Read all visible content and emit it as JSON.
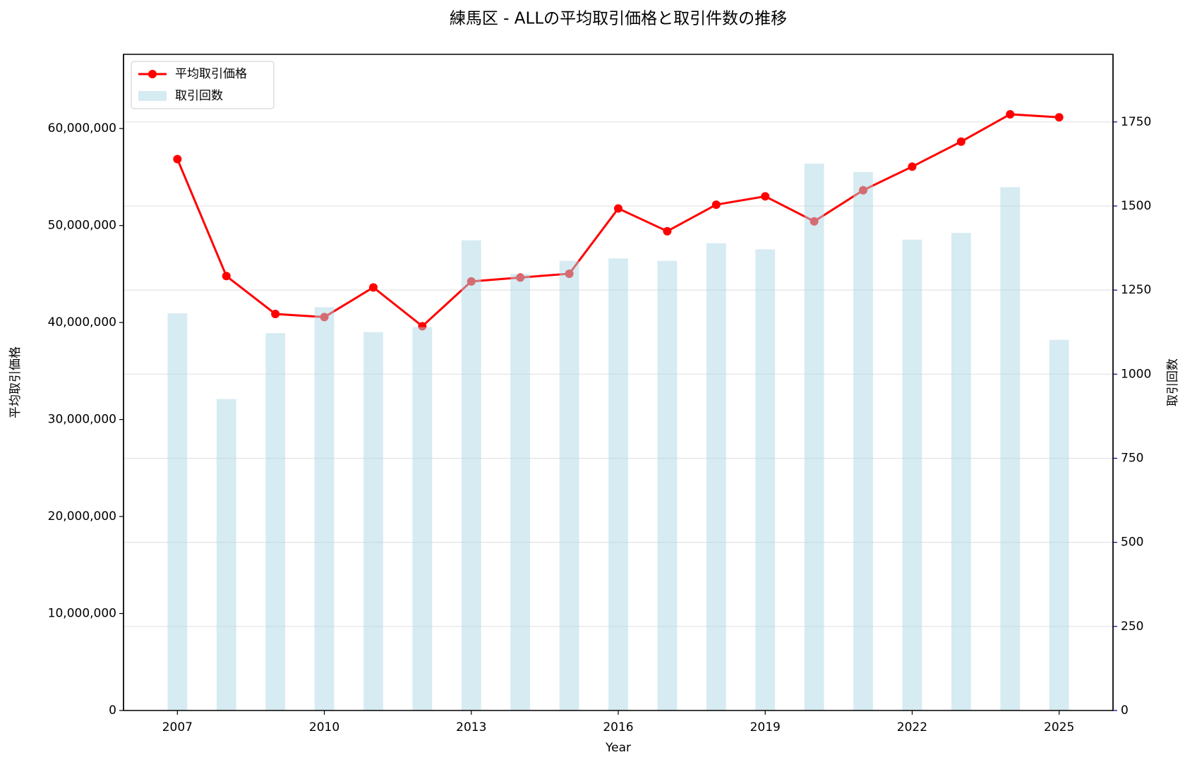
{
  "chart_data": {
    "type": "bar-line",
    "title": "練馬区 - ALLの平均取引価格と取引件数の推移",
    "x_label": "Year",
    "y_label": "平均取引価格",
    "y2_label": "取引回数",
    "x": [
      2007,
      2008,
      2009,
      2010,
      2011,
      2012,
      2013,
      2014,
      2015,
      2016,
      2017,
      2018,
      2019,
      2020,
      2021,
      2022,
      2023,
      2024,
      2025
    ],
    "series": [
      {
        "name": "平均取引価格",
        "type": "line",
        "color": "#ff0000",
        "axis": "y",
        "values": [
          56850000,
          44790000,
          40880000,
          40560000,
          43620000,
          39620000,
          44240000,
          44640000,
          45030000,
          51760000,
          49410000,
          52150000,
          53010000,
          50430000,
          53640000,
          56070000,
          58650000,
          61470000,
          61160000
        ]
      },
      {
        "name": "取引回数",
        "type": "bar",
        "color": "#add8e6",
        "axis": "y2",
        "values": [
          1181,
          926,
          1122,
          1199,
          1125,
          1140,
          1398,
          1298,
          1337,
          1344,
          1337,
          1389,
          1371,
          1626,
          1601,
          1400,
          1420,
          1556,
          1102
        ]
      }
    ],
    "xlim": [
      2005.9,
      2026.1
    ],
    "xticks": [
      2007,
      2010,
      2013,
      2016,
      2019,
      2022,
      2025
    ],
    "ylim": [
      0,
      67650000
    ],
    "yticks": [
      0,
      {
        "value": 10000000,
        "label": "10,000,000"
      },
      {
        "value": 20000000,
        "label": "20,000,000"
      },
      {
        "value": 30000000,
        "label": "30,000,000"
      },
      {
        "value": 40000000,
        "label": "40,000,000"
      },
      {
        "value": 50000000,
        "label": "50,000,000"
      },
      {
        "value": 60000000,
        "label": "60,000,000"
      }
    ],
    "y2lim": [
      0,
      1951
    ],
    "y2ticks": [
      0,
      250,
      500,
      750,
      1000,
      1250,
      1500,
      1750
    ],
    "grid": "y2",
    "legend": "upper left",
    "y_color": "#8b0000",
    "y2_color": "#00008b"
  }
}
